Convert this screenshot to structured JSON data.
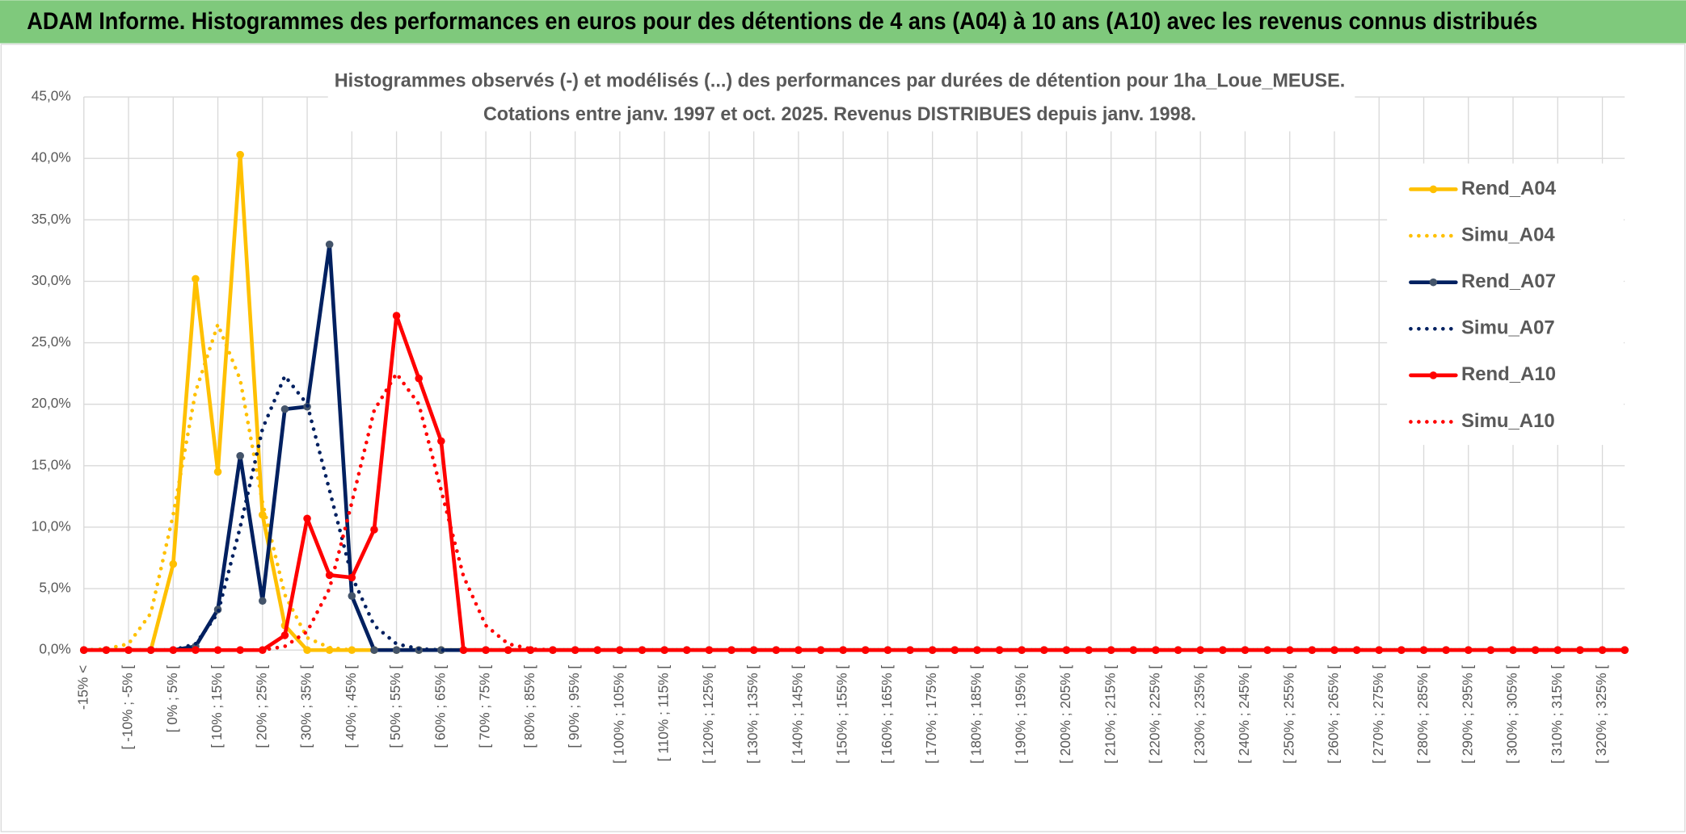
{
  "header": {
    "title": "ADAM Informe. Histogrammes des performances en euros pour des détentions de 4 ans (A04) à 10 ans (A10) avec les revenus connus distribués"
  },
  "chart_data": {
    "type": "line",
    "title": "Histogrammes observés (-) et modélisés (...) des performances par durées de détention pour 1ha_Loue_MEUSE.",
    "subtitle": "Cotations entre janv. 1997 et oct. 2025. Revenus DISTRIBUES depuis janv. 1998.",
    "categories": [
      "-15% <",
      null,
      "[ -10% ; -5% [",
      null,
      "[ 0% ; 5% [",
      null,
      "[ 10% ; 15% [",
      null,
      "[ 20% ; 25% [",
      null,
      "[ 30% ; 35% [",
      null,
      "[ 40% ; 45% [",
      null,
      "[ 50% ; 55% [",
      null,
      "[ 60% ; 65% [",
      null,
      "[ 70% ; 75% [",
      null,
      "[ 80% ; 85% [",
      null,
      "[ 90% ; 95% [",
      null,
      "[ 100% ; 105% [",
      null,
      "[ 110% ; 115% [",
      null,
      "[ 120% ; 125% [",
      null,
      "[ 130% ; 135% [",
      null,
      "[ 140% ; 145% [",
      null,
      "[ 150% ; 155% [",
      null,
      "[ 160% ; 165% [",
      null,
      "[ 170% ; 175% [",
      null,
      "[ 180% ; 185% [",
      null,
      "[ 190% ; 195% [",
      null,
      "[ 200% ; 205% [",
      null,
      "[ 210% ; 215% [",
      null,
      "[ 220% ; 225% [",
      null,
      "[ 230% ; 235% [",
      null,
      "[ 240% ; 245% [",
      null,
      "[ 250% ; 255% [",
      null,
      "[ 260% ; 265% [",
      null,
      "[ 270% ; 275% [",
      null,
      "[ 280% ; 285% [",
      null,
      "[ 290% ; 295% [",
      null,
      "[ 300% ; 305% [",
      null,
      "[ 310% ; 315% [",
      null,
      "[ 320% ; 325% [",
      null
    ],
    "series": [
      {
        "name": "Rend_A04",
        "color": "#ffc000",
        "style": "solid",
        "values": [
          0,
          0,
          0,
          0,
          7.0,
          30.2,
          14.5,
          40.3,
          11,
          2,
          0,
          0,
          0,
          0,
          0,
          0,
          0,
          0,
          0,
          0,
          0,
          0,
          0,
          0,
          0,
          0,
          0,
          0,
          0,
          0,
          0,
          0,
          0,
          0,
          0,
          0,
          0,
          0,
          0,
          0,
          0,
          0,
          0,
          0,
          0,
          0,
          0,
          0,
          0,
          0,
          0,
          0,
          0,
          0,
          0,
          0,
          0,
          0,
          0,
          0,
          0,
          0,
          0,
          0,
          0,
          0,
          0,
          0,
          0,
          0
        ]
      },
      {
        "name": "Simu_A04",
        "color": "#ffc000",
        "style": "dotted",
        "values": [
          0,
          0.1,
          0.5,
          3,
          11,
          21,
          26.5,
          22,
          12,
          4.5,
          1,
          0.2,
          0,
          0,
          0,
          0,
          0,
          0,
          0,
          0,
          0,
          0,
          0,
          0,
          0,
          0,
          0,
          0,
          0,
          0,
          0,
          0,
          0,
          0,
          0,
          0,
          0,
          0,
          0,
          0,
          0,
          0,
          0,
          0,
          0,
          0,
          0,
          0,
          0,
          0,
          0,
          0,
          0,
          0,
          0,
          0,
          0,
          0,
          0,
          0,
          0,
          0,
          0,
          0,
          0,
          0,
          0,
          0,
          0,
          0
        ]
      },
      {
        "name": "Rend_A07",
        "color": "#002060",
        "style": "solid",
        "values": [
          0,
          0,
          0,
          0,
          0,
          0.3,
          3.3,
          15.8,
          4.0,
          19.6,
          19.8,
          33.0,
          4.4,
          0,
          0,
          0,
          0,
          0,
          0,
          0,
          0,
          0,
          0,
          0,
          0,
          0,
          0,
          0,
          0,
          0,
          0,
          0,
          0,
          0,
          0,
          0,
          0,
          0,
          0,
          0,
          0,
          0,
          0,
          0,
          0,
          0,
          0,
          0,
          0,
          0,
          0,
          0,
          0,
          0,
          0,
          0,
          0,
          0,
          0,
          0,
          0,
          0,
          0,
          0,
          0,
          0,
          0,
          0,
          0,
          0
        ]
      },
      {
        "name": "Simu_A07",
        "color": "#002060",
        "style": "dotted",
        "values": [
          0,
          0,
          0,
          0,
          0,
          0.5,
          3,
          10,
          18,
          22.3,
          20,
          13,
          6,
          2,
          0.5,
          0.1,
          0,
          0,
          0,
          0,
          0,
          0,
          0,
          0,
          0,
          0,
          0,
          0,
          0,
          0,
          0,
          0,
          0,
          0,
          0,
          0,
          0,
          0,
          0,
          0,
          0,
          0,
          0,
          0,
          0,
          0,
          0,
          0,
          0,
          0,
          0,
          0,
          0,
          0,
          0,
          0,
          0,
          0,
          0,
          0,
          0,
          0,
          0,
          0,
          0,
          0,
          0,
          0,
          0,
          0
        ]
      },
      {
        "name": "Rend_A10",
        "color": "#ff0000",
        "style": "solid",
        "values": [
          0,
          0,
          0,
          0,
          0,
          0,
          0,
          0,
          0,
          1.2,
          10.7,
          6.1,
          5.9,
          9.8,
          27.2,
          22.1,
          17.0,
          0,
          0,
          0,
          0,
          0,
          0,
          0,
          0,
          0,
          0,
          0,
          0,
          0,
          0,
          0,
          0,
          0,
          0,
          0,
          0,
          0,
          0,
          0,
          0,
          0,
          0,
          0,
          0,
          0,
          0,
          0,
          0,
          0,
          0,
          0,
          0,
          0,
          0,
          0,
          0,
          0,
          0,
          0,
          0,
          0,
          0,
          0,
          0,
          0,
          0,
          0,
          0,
          0
        ]
      },
      {
        "name": "Simu_A10",
        "color": "#ff0000",
        "style": "dotted",
        "values": [
          0,
          0,
          0,
          0,
          0,
          0,
          0,
          0,
          0,
          0.3,
          1.5,
          5,
          12,
          19.5,
          22.5,
          20,
          13,
          6,
          2,
          0.5,
          0.1,
          0,
          0,
          0,
          0,
          0,
          0,
          0,
          0,
          0,
          0,
          0,
          0,
          0,
          0,
          0,
          0,
          0,
          0,
          0,
          0,
          0,
          0,
          0,
          0,
          0,
          0,
          0,
          0,
          0,
          0,
          0,
          0,
          0,
          0,
          0,
          0,
          0,
          0,
          0,
          0,
          0,
          0,
          0,
          0,
          0,
          0,
          0,
          0,
          0
        ]
      }
    ],
    "ylim": [
      0,
      45
    ],
    "yticks": [
      {
        "value": 0,
        "label": "0,0%"
      },
      {
        "value": 5,
        "label": "5,0%"
      },
      {
        "value": 10,
        "label": "10,0%"
      },
      {
        "value": 15,
        "label": "15,0%"
      },
      {
        "value": 20,
        "label": "20,0%"
      },
      {
        "value": 25,
        "label": "25,0%"
      },
      {
        "value": 30,
        "label": "30,0%"
      },
      {
        "value": 35,
        "label": "35,0%"
      },
      {
        "value": 40,
        "label": "40,0%"
      },
      {
        "value": 45,
        "label": "45,0%"
      }
    ],
    "grid": true,
    "legend": "right"
  }
}
